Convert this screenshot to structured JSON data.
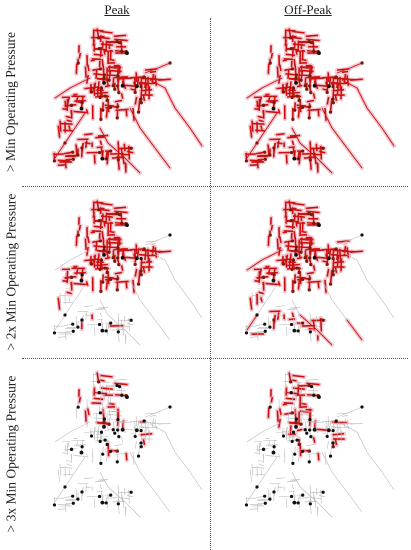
{
  "columns": {
    "peak": "Peak",
    "off_peak": "Off-Peak"
  },
  "rows": [
    {
      "label": "> Min Operating Pressure",
      "coverage_peak": 0.95,
      "coverage_offpeak": 0.95
    },
    {
      "label": "> 2x Min Operating Pressure",
      "coverage_peak": 0.62,
      "coverage_offpeak": 0.72
    },
    {
      "label": "> 3x Min Operating Pressure",
      "coverage_peak": 0.12,
      "coverage_offpeak": 0.22
    }
  ],
  "colors": {
    "satisfied_pipe": "#cc1111",
    "unsatisfied_pipe": "#b8b8b8",
    "node": "#7a1a0a",
    "source_node": "#111111",
    "halo": "#f3c6cf",
    "divider": "#555555"
  }
}
